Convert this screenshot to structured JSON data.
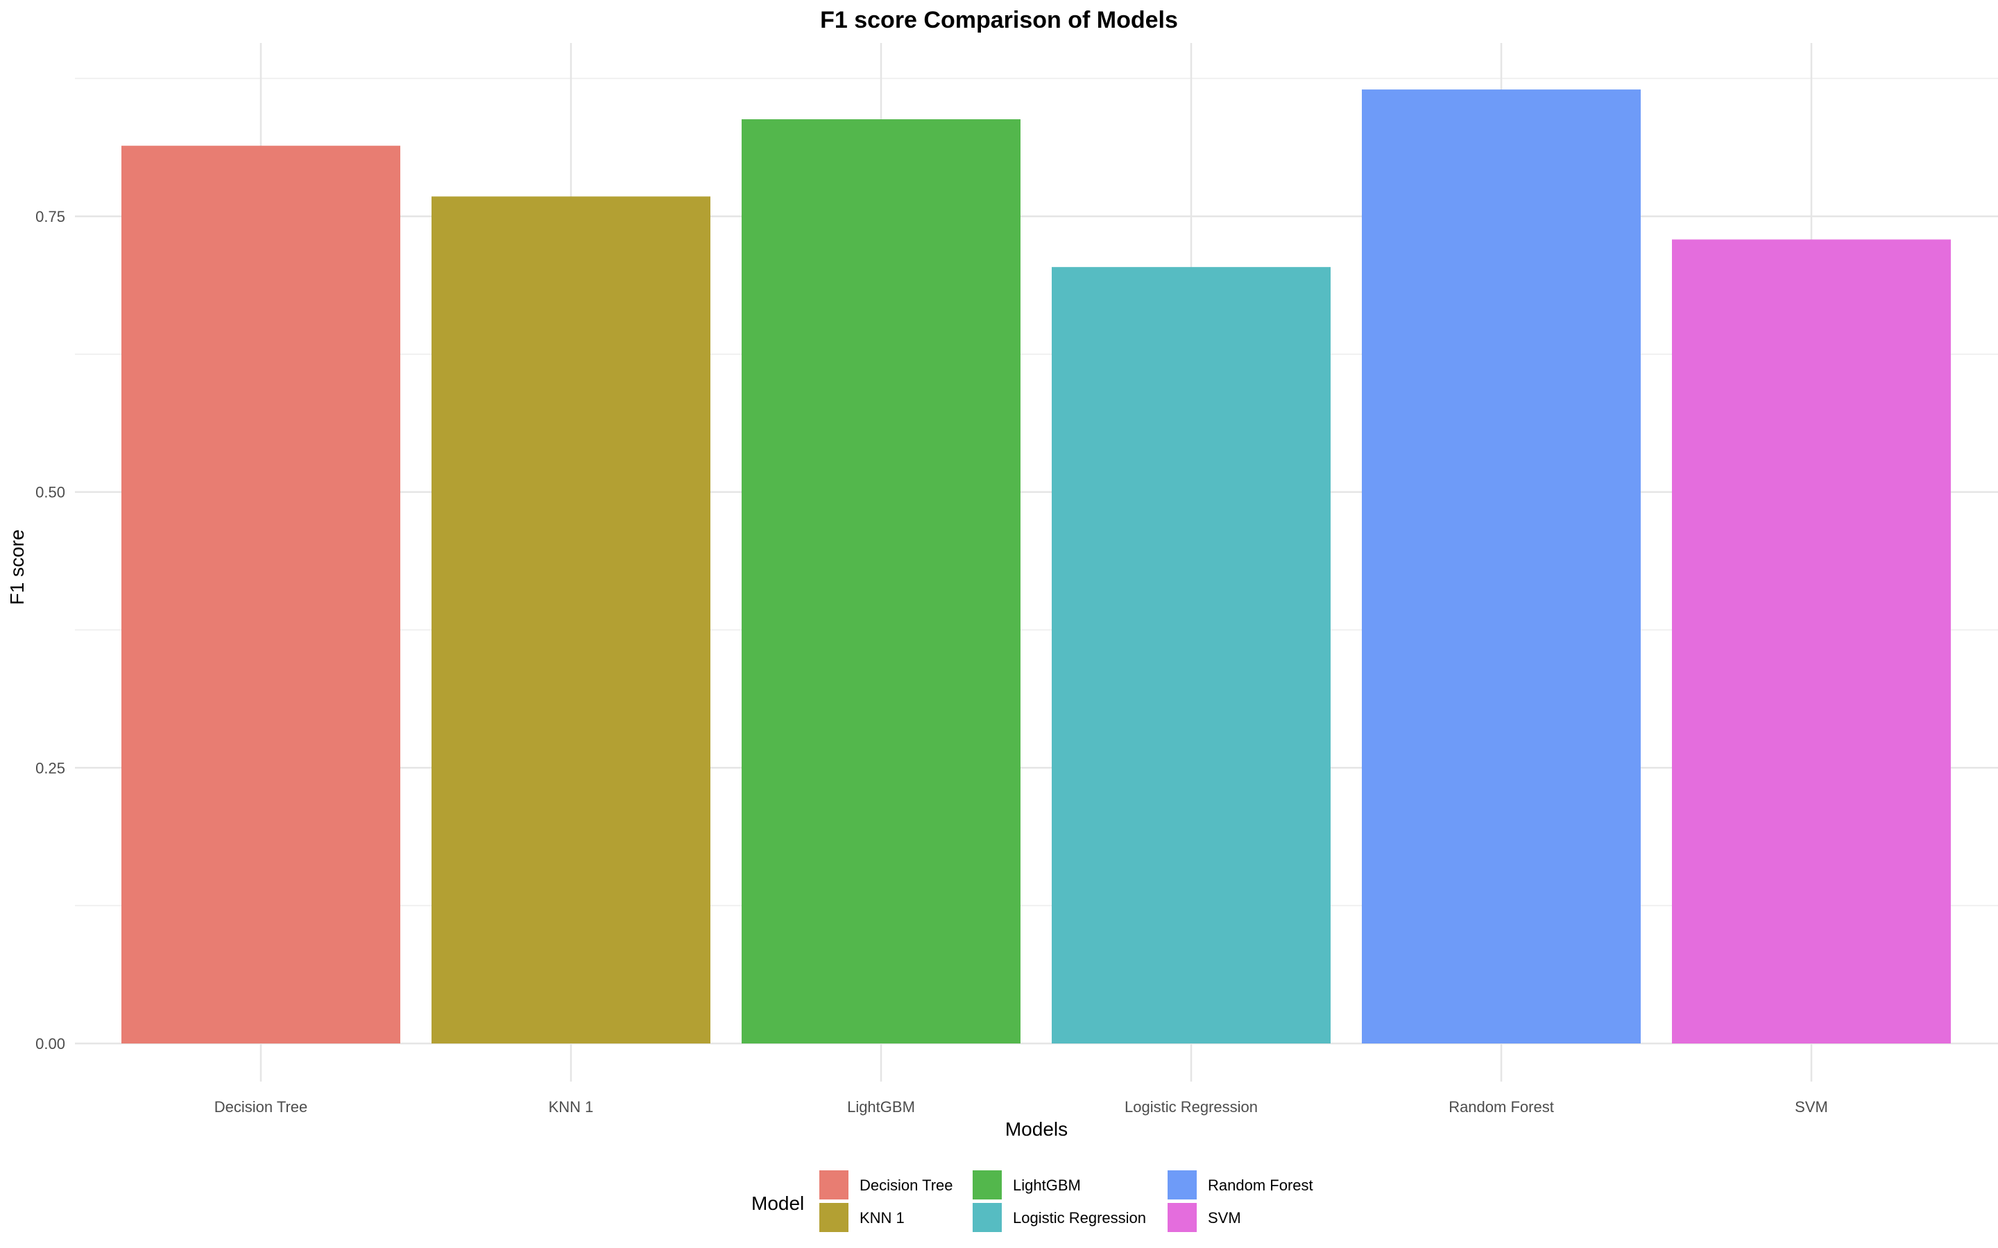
{
  "chart_data": {
    "type": "bar",
    "title": "F1 score Comparison of Models",
    "xlabel": "Models",
    "ylabel": "F1 score",
    "categories": [
      "Decision Tree",
      "KNN 1",
      "LightGBM",
      "Logistic Regression",
      "Random Forest",
      "SVM"
    ],
    "values": [
      0.814,
      0.768,
      0.838,
      0.704,
      0.865,
      0.729
    ],
    "colors": [
      "#E87D72",
      "#B3A033",
      "#53B74C",
      "#56BCC2",
      "#6E9BF8",
      "#E46DDD"
    ],
    "ylim": [
      0,
      0.9
    ],
    "yticks": [
      {
        "value": 0,
        "label": "0.00"
      },
      {
        "value": 0.25,
        "label": "0.25"
      },
      {
        "value": 0.5,
        "label": "0.50"
      },
      {
        "value": 0.75,
        "label": "0.75"
      }
    ],
    "grid": true,
    "legend": {
      "title": "Model",
      "position": "bottom",
      "entries": [
        "Decision Tree",
        "KNN 1",
        "LightGBM",
        "Logistic Regression",
        "Random Forest",
        "SVM"
      ]
    }
  }
}
